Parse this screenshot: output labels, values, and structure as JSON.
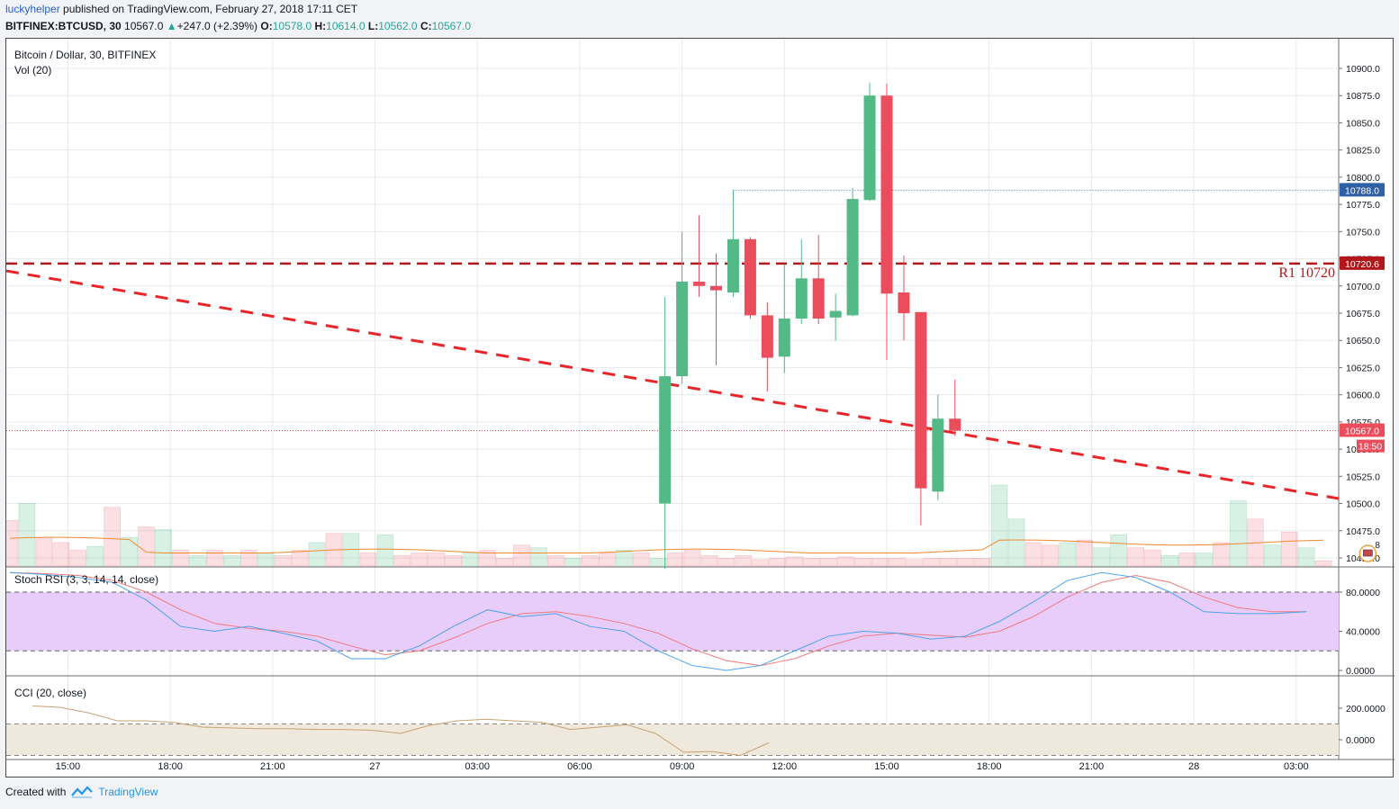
{
  "header": {
    "user": "luckyhelper",
    "published": " published on TradingView.com, February 27, 2018 17:11 CET"
  },
  "symbol_line": {
    "symbol": "BITFINEX:BTCUSD, 30",
    "last": "10567.0",
    "change": "+247.0 (+2.39%)",
    "o_label": "O:",
    "o": "10578.0",
    "h_label": "H:",
    "h": "10614.0",
    "l_label": "L:",
    "l": "10562.0",
    "c_label": "C:",
    "c": "10567.0"
  },
  "footer": {
    "created_with": "Created with",
    "brand": "TradingView"
  },
  "colors": {
    "up": "#53b987",
    "down": "#eb4d5c",
    "trend": "#e8262a",
    "r1": "#b2181b",
    "rsi_k": "#4aa3f0",
    "rsi_d": "#f07a7a",
    "rsi_band": "#e8cdfb",
    "cci": "#c8a272",
    "cci_band": "#efe9dd",
    "vol_ma": "#f08a2c"
  },
  "chart_data": [
    {
      "type": "candlestick",
      "title": "Bitcoin / Dollar, 30, BITFINEX",
      "volume_label": "Vol (20)",
      "x_ticks": [
        "15:00",
        "18:00",
        "21:00",
        "27",
        "03:00",
        "06:00",
        "09:00",
        "12:00",
        "15:00",
        "18:00",
        "21:00",
        "28",
        "03:00"
      ],
      "y_ticks": [
        "10900.0",
        "10875.0",
        "10850.0",
        "10825.0",
        "10800.0",
        "10775.0",
        "10750.0",
        "10725.0",
        "10700.0",
        "10675.0",
        "10650.0",
        "10625.0",
        "10600.0",
        "10575.0",
        "10550.0",
        "10525.0",
        "10500.0",
        "10475.0",
        "10450.0"
      ],
      "ylim": [
        10443,
        10913
      ],
      "candles": [
        {
          "t": "08:30",
          "o": 10500,
          "h": 10690,
          "l": 10440,
          "c": 10617
        },
        {
          "t": "09:00",
          "o": 10617,
          "h": 10750,
          "l": 10610,
          "c": 10704
        },
        {
          "t": "09:30",
          "o": 10704,
          "h": 10765,
          "l": 10690,
          "c": 10700
        },
        {
          "t": "10:00",
          "o": 10700,
          "h": 10730,
          "l": 10627,
          "c": 10696
        },
        {
          "t": "10:30",
          "o": 10694,
          "h": 10788,
          "l": 10690,
          "c": 10743
        },
        {
          "t": "11:00",
          "o": 10743,
          "h": 10745,
          "l": 10670,
          "c": 10673
        },
        {
          "t": "11:30",
          "o": 10673,
          "h": 10685,
          "l": 10603,
          "c": 10634
        },
        {
          "t": "12:00",
          "o": 10635,
          "h": 10720,
          "l": 10620,
          "c": 10670
        },
        {
          "t": "12:30",
          "o": 10670,
          "h": 10743,
          "l": 10665,
          "c": 10707
        },
        {
          "t": "13:00",
          "o": 10707,
          "h": 10747,
          "l": 10665,
          "c": 10670
        },
        {
          "t": "13:30",
          "o": 10671,
          "h": 10693,
          "l": 10650,
          "c": 10677
        },
        {
          "t": "14:00",
          "o": 10673,
          "h": 10790,
          "l": 10672,
          "c": 10780
        },
        {
          "t": "14:30",
          "o": 10779,
          "h": 10887,
          "l": 10778,
          "c": 10875
        },
        {
          "t": "15:00",
          "o": 10875,
          "h": 10886,
          "l": 10632,
          "c": 10693
        },
        {
          "t": "15:30",
          "o": 10694,
          "h": 10728,
          "l": 10650,
          "c": 10675
        },
        {
          "t": "16:00",
          "o": 10676,
          "h": 10676,
          "l": 10480,
          "c": 10514
        },
        {
          "t": "16:30",
          "o": 10511,
          "h": 10600,
          "l": 10503,
          "c": 10578
        },
        {
          "t": "17:00",
          "o": 10578,
          "h": 10614,
          "l": 10562,
          "c": 10567
        }
      ],
      "hlines": [
        {
          "label": "R1 10720",
          "value": 10720.6,
          "badge": "10720.6"
        },
        {
          "label": "",
          "value": 10788.0,
          "badge": "10788.0"
        },
        {
          "label": "",
          "value": 10567.0,
          "badge": "10567.0"
        }
      ],
      "countdown": "18:50",
      "event_count": "8",
      "trendline": [
        {
          "t": "Feb 26 12:00",
          "y": 10715
        },
        {
          "t": "Feb 28 04:00",
          "y": 10503
        }
      ]
    },
    {
      "type": "line",
      "title": "Stoch RSI (3, 3, 14, 14, close)",
      "y_ticks": [
        "80.0000",
        "40.0000",
        "0.0000"
      ],
      "ylim": [
        0,
        100
      ],
      "bands": [
        20,
        80
      ]
    },
    {
      "type": "line",
      "title": "CCI (20, close)",
      "y_ticks": [
        "200.0000",
        "0.0000"
      ],
      "ylim": [
        -150,
        350
      ],
      "bands": [
        -100,
        100
      ]
    }
  ]
}
